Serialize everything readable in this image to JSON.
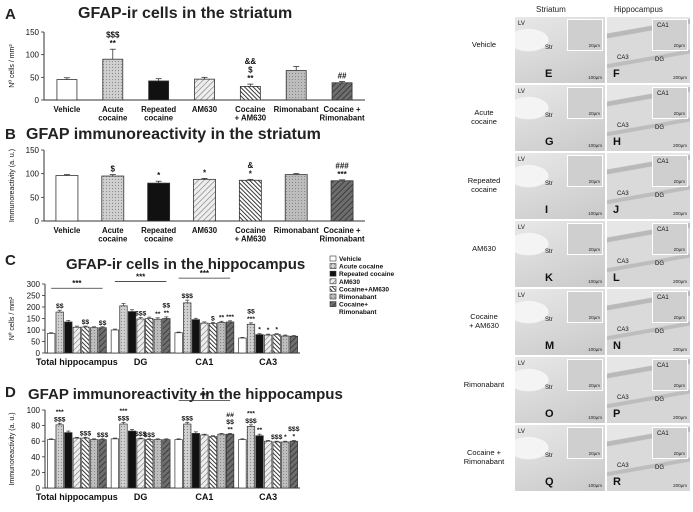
{
  "colors": {
    "vehicle": "#ffffff",
    "acute": "#c8c8c8",
    "repeated": "#111111",
    "am630": "#dcdcdc",
    "cocaine_am630": "#3a3a3a",
    "rimonabant": "#a0a0a0",
    "combo": "#6a6a6a",
    "stroke": "#333333"
  },
  "chart_data": [
    {
      "type": "bar",
      "panel_label": "A",
      "title": "GFAP-ir cells in the striatum",
      "ylabel": "Nº cells / mm²",
      "ylim": [
        0,
        150
      ],
      "yticks": [
        0,
        50,
        100,
        150
      ],
      "grid": false,
      "categories": [
        "Vehicle",
        "Acute\ncocaine",
        "Repeated\ncocaine",
        "AM630",
        "Cocaine\n+ AM630",
        "Rimonabant",
        "Cocaine +\nRimonabant"
      ],
      "values": [
        45,
        90,
        42,
        46,
        30,
        65,
        38
      ],
      "errors": [
        4,
        22,
        5,
        4,
        5,
        9,
        3
      ],
      "annotations": [
        "",
        "$$$\n**",
        "",
        "",
        "&&\n$\n**",
        "",
        "##"
      ]
    },
    {
      "type": "bar",
      "panel_label": "B",
      "title": "GFAP immunoreactivity in the striatum",
      "ylabel": "Immunoreactivity (a. u.)",
      "ylim": [
        0,
        150
      ],
      "yticks": [
        0,
        50,
        100,
        150
      ],
      "grid": false,
      "categories": [
        "Vehicle",
        "Acute\ncocaine",
        "Repeated\ncocaine",
        "AM630",
        "Cocaine\n+ AM630",
        "Rimonabant",
        "Cocaine +\nRimonabant"
      ],
      "values": [
        96,
        95,
        80,
        88,
        86,
        98,
        85
      ],
      "errors": [
        2,
        3,
        4,
        2,
        2,
        2,
        2
      ],
      "annotations": [
        "",
        "$",
        "*",
        "*",
        "&\n*",
        "",
        "###\n***"
      ]
    },
    {
      "type": "bar",
      "panel_label": "C",
      "title": "GFAP-ir cells in the hippocampus",
      "ylabel": "Nº cells / mm²",
      "ylim": [
        0,
        300
      ],
      "yticks": [
        0,
        50,
        100,
        150,
        200,
        250,
        300
      ],
      "grid": false,
      "categories": [
        "Total hippocampus",
        "DG",
        "CA1",
        "CA3"
      ],
      "series": [
        {
          "name": "Vehicle",
          "values": [
            85,
            100,
            88,
            65
          ],
          "errors": [
            3,
            4,
            3,
            3
          ]
        },
        {
          "name": "Acute cocaine",
          "values": [
            178,
            205,
            218,
            125
          ],
          "errors": [
            8,
            10,
            12,
            6
          ]
        },
        {
          "name": "Repeated cocaine",
          "values": [
            135,
            180,
            145,
            80
          ],
          "errors": [
            6,
            8,
            6,
            4
          ]
        },
        {
          "name": "AM630",
          "values": [
            112,
            148,
            130,
            78
          ],
          "errors": [
            5,
            6,
            5,
            4
          ]
        },
        {
          "name": "Cocaine+AM630",
          "values": [
            113,
            150,
            128,
            80
          ],
          "errors": [
            4,
            6,
            5,
            4
          ]
        },
        {
          "name": "Rimonabant",
          "values": [
            110,
            147,
            133,
            74
          ],
          "errors": [
            4,
            6,
            5,
            4
          ]
        },
        {
          "name": "Cocaine+ Rimonabant",
          "values": [
            110,
            150,
            135,
            73
          ],
          "errors": [
            4,
            7,
            5,
            3
          ]
        }
      ],
      "annotations": [
        [
          "",
          "$$",
          "",
          "",
          "$$",
          "",
          "$$"
        ],
        [
          "",
          "",
          "",
          "$$$",
          "",
          "**",
          "$$\n**"
        ],
        [
          "",
          "$$$",
          "",
          "",
          "$",
          "**",
          "***"
        ],
        [
          "",
          "$$\n***",
          "*",
          "*",
          "*",
          "",
          ""
        ]
      ],
      "brackets": [
        {
          "category": 0,
          "label": "***"
        },
        {
          "category": 1,
          "label": "***"
        },
        {
          "category": 2,
          "label": "***"
        }
      ],
      "legend": [
        "Vehicle",
        "Acute cocaine",
        "Repeated cocaine",
        "AM630",
        "Cocaine+AM630",
        "Rimonabant",
        "Cocaine+\nRimonabant"
      ],
      "legend_placement": "top-right"
    },
    {
      "type": "bar",
      "panel_label": "D",
      "title": "GFAP immunoreactivity in the hippocampus",
      "ylabel": "Immunoreactivity (a. u.)",
      "ylim": [
        0,
        100
      ],
      "yticks": [
        0,
        20,
        40,
        60,
        80,
        100
      ],
      "grid": false,
      "categories": [
        "Total hippocampus",
        "DG",
        "CA1",
        "CA3"
      ],
      "series": [
        {
          "name": "Vehicle",
          "values": [
            62,
            63,
            62,
            62
          ],
          "errors": [
            1,
            1,
            1,
            1
          ]
        },
        {
          "name": "Acute cocaine",
          "values": [
            81,
            82,
            82,
            79
          ],
          "errors": [
            2,
            2,
            2,
            2
          ]
        },
        {
          "name": "Repeated cocaine",
          "values": [
            71,
            73,
            70,
            67
          ],
          "errors": [
            2,
            2,
            2,
            2
          ]
        },
        {
          "name": "AM630",
          "values": [
            64,
            63,
            68,
            60
          ],
          "errors": [
            1,
            1,
            1,
            1
          ]
        },
        {
          "name": "Cocaine+AM630",
          "values": [
            64,
            62,
            66,
            59
          ],
          "errors": [
            1,
            1,
            1,
            1
          ]
        },
        {
          "name": "Rimonabant",
          "values": [
            62,
            62,
            69,
            59
          ],
          "errors": [
            1,
            1,
            1,
            1
          ]
        },
        {
          "name": "Cocaine+ Rimonabant",
          "values": [
            62,
            62,
            69,
            60
          ],
          "errors": [
            1,
            1,
            1,
            1
          ]
        }
      ],
      "annotations": [
        [
          "",
          "***\n$$$",
          "",
          "",
          "$$$",
          "",
          "$$$"
        ],
        [
          "",
          "***\n$$$",
          "",
          "$$$",
          "$$$",
          "",
          ""
        ],
        [
          "",
          "$$$",
          "",
          "",
          "",
          "",
          "##\n$$\n**"
        ],
        [
          "",
          "***\n$$$",
          "**",
          "",
          "$$$",
          "*",
          "$$$\n*"
        ]
      ],
      "brackets": [
        {
          "category": 2,
          "label": "***"
        }
      ]
    }
  ],
  "micrographs": {
    "column_headers": [
      "Striatum",
      "Hippocampus"
    ],
    "rows": [
      {
        "label": "Vehicle",
        "letters": [
          "E",
          "F"
        ]
      },
      {
        "label": "Acute\ncocaine",
        "letters": [
          "G",
          "H"
        ]
      },
      {
        "label": "Repeated\ncocaine",
        "letters": [
          "I",
          "J"
        ]
      },
      {
        "label": "AM630",
        "letters": [
          "K",
          "L"
        ]
      },
      {
        "label": "Cocaine\n+ AM630",
        "letters": [
          "M",
          "N"
        ]
      },
      {
        "label": "Rimonabant",
        "letters": [
          "O",
          "P"
        ]
      },
      {
        "label": "Cocaine +\nRimonabant",
        "letters": [
          "Q",
          "R"
        ]
      }
    ],
    "region_labels": {
      "lv": "LV",
      "str": "Str",
      "ca1": "CA1",
      "ca3": "CA3",
      "dg": "DG"
    },
    "scale_labels": {
      "inset": "20µm",
      "main": "100µm",
      "main_hippo": "200µm"
    }
  }
}
